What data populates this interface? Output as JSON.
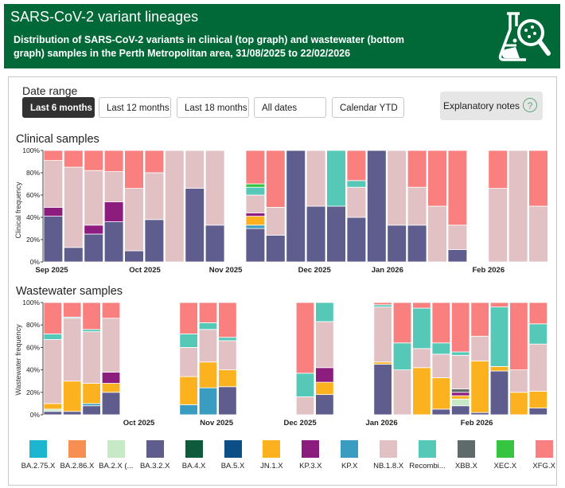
{
  "header": {
    "title": "SARS-CoV-2 variant lineages",
    "subtitle": "Distribution of SARS-CoV-2 variants in clinical (top graph) and wastewater (bottom graph) samples in the Perth Metropolitan area, 31/08/2025 to 22/02/2026"
  },
  "date_range": {
    "label": "Date range",
    "buttons": [
      "Last 6 months",
      "Last 12 months",
      "Last 18 months",
      "All dates",
      "Calendar YTD"
    ],
    "active": "Last 6 months"
  },
  "explanatory_notes": {
    "label": "Explanatory notes",
    "icon": "help-icon"
  },
  "colors": {
    "BA.2.75.X": "#1cb6cf",
    "BA.2.86.X": "#f78f52",
    "BA.2.X (...)": "#c6e9c6",
    "BA.3.2.X": "#5e5d8d",
    "BA.4.X": "#0d5a3c",
    "BA.5.X": "#0c4f86",
    "JN.1.X": "#fcb21f",
    "KP.3.X": "#8c1d7e",
    "KP.X": "#3a9cc1",
    "NB.1.8.X": "#e2c1c4",
    "Recombi...": "#55c8b8",
    "XBB.X": "#5f6b6b",
    "XEC.X": "#36c441",
    "XFG.X": "#fa8080"
  },
  "chart_data": [
    {
      "type": "bar",
      "stacked": true,
      "title": "Clinical samples",
      "ylabel": "Clinical frequency",
      "xlabel": "",
      "ylim": [
        0,
        100
      ],
      "yticks": [
        "0%",
        "20%",
        "40%",
        "60%",
        "80%",
        "100%"
      ],
      "xticks": [
        "Sep 2025",
        "Oct 2025",
        "Nov 2025",
        "Dec 2025",
        "Jan 2026",
        "Feb 2026"
      ],
      "bars": [
        {
          "slot": 0,
          "values": {
            "BA.3.2.X": 41,
            "KP.3.X": 8,
            "NB.1.8.X": 42,
            "XFG.X": 9
          }
        },
        {
          "slot": 1,
          "values": {
            "BA.3.2.X": 13,
            "NB.1.8.X": 72,
            "XFG.X": 15
          }
        },
        {
          "slot": 2,
          "values": {
            "BA.3.2.X": 25,
            "KP.3.X": 8,
            "NB.1.8.X": 49,
            "XFG.X": 18
          }
        },
        {
          "slot": 3,
          "values": {
            "BA.3.2.X": 36,
            "KP.3.X": 18,
            "NB.1.8.X": 27,
            "XFG.X": 19
          }
        },
        {
          "slot": 4,
          "values": {
            "BA.3.2.X": 10,
            "NB.1.8.X": 56,
            "XFG.X": 34
          }
        },
        {
          "slot": 5,
          "values": {
            "BA.3.2.X": 38,
            "NB.1.8.X": 42,
            "XFG.X": 20
          }
        },
        {
          "slot": 6,
          "values": {
            "NB.1.8.X": 100
          }
        },
        {
          "slot": 7,
          "values": {
            "BA.3.2.X": 66,
            "NB.1.8.X": 34
          }
        },
        {
          "slot": 8,
          "values": {
            "BA.3.2.X": 33,
            "NB.1.8.X": 67
          }
        },
        {
          "slot": 10,
          "values": {
            "BA.3.2.X": 30,
            "JN.1.X": 8,
            "KP.X": 3,
            "KP.3.X": 3,
            "NB.1.8.X": 16,
            "Recombi...": 7,
            "XEC.X": 3,
            "XFG.X": 30
          }
        },
        {
          "slot": 11,
          "values": {
            "BA.3.2.X": 24,
            "NB.1.8.X": 25,
            "XFG.X": 51
          }
        },
        {
          "slot": 12,
          "values": {
            "BA.3.2.X": 100
          }
        },
        {
          "slot": 13,
          "values": {
            "BA.3.2.X": 50,
            "NB.1.8.X": 50
          }
        },
        {
          "slot": 14,
          "values": {
            "BA.3.2.X": 50,
            "Recombi...": 50
          }
        },
        {
          "slot": 15,
          "values": {
            "BA.3.2.X": 40,
            "NB.1.8.X": 27,
            "Recombi...": 6,
            "XFG.X": 27
          }
        },
        {
          "slot": 16,
          "values": {
            "BA.3.2.X": 100
          }
        },
        {
          "slot": 17,
          "values": {
            "BA.3.2.X": 33,
            "NB.1.8.X": 67
          }
        },
        {
          "slot": 18,
          "values": {
            "BA.3.2.X": 33,
            "NB.1.8.X": 34,
            "XFG.X": 33
          }
        },
        {
          "slot": 19,
          "values": {
            "NB.1.8.X": 50,
            "XFG.X": 50
          }
        },
        {
          "slot": 20,
          "values": {
            "BA.3.2.X": 11,
            "NB.1.8.X": 22,
            "XFG.X": 67
          }
        },
        {
          "slot": 22,
          "values": {
            "NB.1.8.X": 66,
            "XFG.X": 34
          }
        },
        {
          "slot": 23,
          "values": {
            "NB.1.8.X": 100
          }
        },
        {
          "slot": 24,
          "values": {
            "NB.1.8.X": 50,
            "XFG.X": 50
          }
        }
      ]
    },
    {
      "type": "bar",
      "stacked": true,
      "title": "Wastewater samples",
      "ylabel": "Wastewater frequency",
      "xlabel": "",
      "ylim": [
        0,
        100
      ],
      "yticks": [
        "0%",
        "20%",
        "40%",
        "60%",
        "80%",
        "100%"
      ],
      "xticks": [
        "Oct 2025",
        "Nov 2025",
        "Dec 2025",
        "Jan 2026",
        "Feb 2026"
      ],
      "bars": [
        {
          "slot": 0,
          "values": {
            "BA.3.2.X": 3,
            "BA.2.X (...)": 2,
            "JN.1.X": 5,
            "NB.1.8.X": 57,
            "Recombi...": 5,
            "XFG.X": 28
          }
        },
        {
          "slot": 1,
          "values": {
            "BA.3.2.X": 3,
            "JN.1.X": 27,
            "NB.1.8.X": 56,
            "Recombi...": 1,
            "XFG.X": 13
          }
        },
        {
          "slot": 2,
          "values": {
            "BA.3.2.X": 8,
            "JN.1.X": 18,
            "KP.X": 2,
            "Recombi...": 2,
            "NB.1.8.X": 46,
            "XFG.X": 24
          }
        },
        {
          "slot": 3,
          "values": {
            "BA.3.2.X": 20,
            "JN.1.X": 8,
            "KP.3.X": 10,
            "NB.1.8.X": 48,
            "XFG.X": 14
          }
        },
        {
          "slot": 7,
          "values": {
            "JN.1.X": 25,
            "KP.X": 9,
            "NB.1.8.X": 26,
            "Recombi...": 12,
            "XFG.X": 28
          }
        },
        {
          "slot": 8,
          "values": {
            "JN.1.X": 23,
            "KP.X": 24,
            "NB.1.8.X": 29,
            "Recombi...": 6,
            "XFG.X": 18
          }
        },
        {
          "slot": 9,
          "values": {
            "BA.3.2.X": 25,
            "JN.1.X": 15,
            "NB.1.8.X": 26,
            "Recombi...": 3,
            "XFG.X": 31
          }
        },
        {
          "slot": 13,
          "values": {
            "NB.1.8.X": 16,
            "Recombi...": 21,
            "XFG.X": 63
          }
        },
        {
          "slot": 14,
          "values": {
            "BA.3.2.X": 18,
            "JN.1.X": 11,
            "KP.3.X": 13,
            "NB.1.8.X": 41,
            "Recombi...": 17
          }
        },
        {
          "slot": 17,
          "values": {
            "BA.3.2.X": 45,
            "JN.1.X": 2,
            "NB.1.8.X": 49,
            "Recombi...": 2,
            "XFG.X": 2
          }
        },
        {
          "slot": 18,
          "values": {
            "NB.1.8.X": 40,
            "Recombi...": 24,
            "XFG.X": 36
          }
        },
        {
          "slot": 19,
          "values": {
            "JN.1.X": 42,
            "NB.1.8.X": 17,
            "Recombi...": 36,
            "XFG.X": 5
          }
        },
        {
          "slot": 20,
          "values": {
            "BA.3.2.X": 5,
            "JN.1.X": 28,
            "NB.1.8.X": 21,
            "Recombi...": 10,
            "XFG.X": 36
          }
        },
        {
          "slot": 21,
          "values": {
            "BA.2.X (...)": 6,
            "BA.3.2.X": 8,
            "KP.3.X": 3,
            "JN.1.X": 3,
            "NB.1.8.X": 30,
            "XBB.X": 3,
            "Recombi...": 3,
            "XFG.X": 44
          }
        },
        {
          "slot": 22,
          "values": {
            "BA.3.2.X": 2,
            "JN.1.X": 46,
            "NB.1.8.X": 22,
            "Recombi...": 0,
            "XFG.X": 30
          }
        },
        {
          "slot": 23,
          "values": {
            "BA.3.2.X": 39,
            "JN.1.X": 4,
            "Recombi...": 53,
            "XFG.X": 4
          }
        },
        {
          "slot": 24,
          "values": {
            "JN.1.X": 20,
            "NB.1.8.X": 20,
            "XFG.X": 60
          }
        },
        {
          "slot": 25,
          "values": {
            "BA.3.2.X": 6,
            "JN.1.X": 15,
            "NB.1.8.X": 42,
            "Recombi...": 18,
            "XFG.X": 19
          }
        }
      ]
    }
  ],
  "legend": [
    "BA.2.75.X",
    "BA.2.86.X",
    "BA.2.X (...",
    "BA.3.2.X",
    "BA.4.X",
    "BA.5.X",
    "JN.1.X",
    "KP.3.X",
    "KP.X",
    "NB.1.8.X",
    "Recombi...",
    "XBB.X",
    "XEC.X",
    "XFG.X"
  ]
}
